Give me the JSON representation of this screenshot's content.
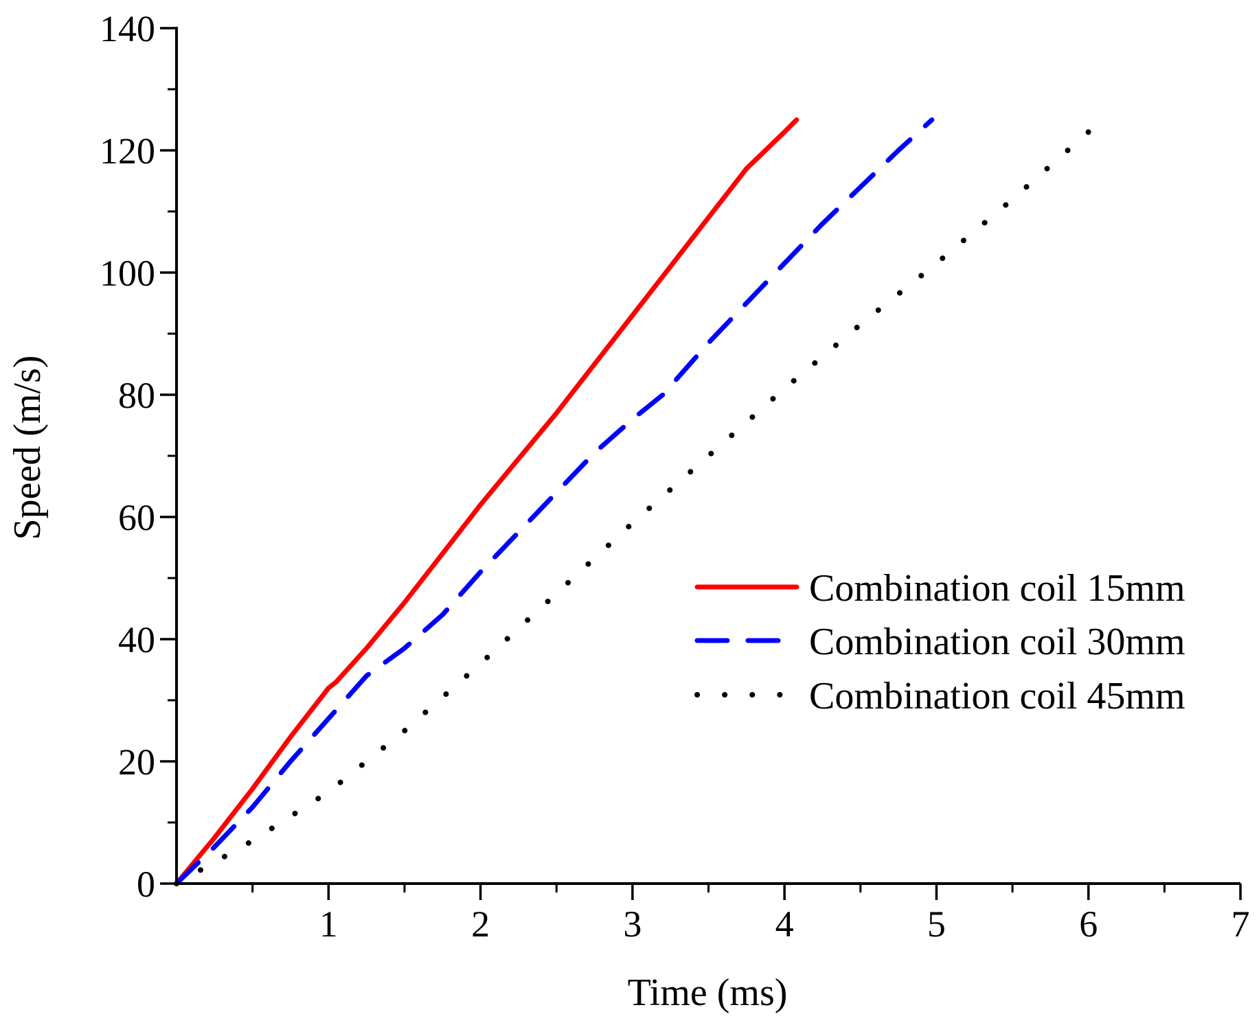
{
  "chart_data": {
    "type": "line",
    "title": "",
    "xlabel": "Time (ms)",
    "ylabel": "Speed (m/s)",
    "xlim": [
      0,
      7
    ],
    "ylim": [
      0,
      140
    ],
    "xticks": [
      1,
      2,
      3,
      4,
      5,
      6,
      7
    ],
    "xtick_labels": [
      "1",
      "2",
      "3",
      "4",
      "5",
      "6",
      "7"
    ],
    "yticks": [
      0,
      20,
      40,
      60,
      80,
      100,
      120,
      140
    ],
    "ytick_labels": [
      "0",
      "20",
      "40",
      "60",
      "80",
      "100",
      "120",
      "140"
    ],
    "grid": false,
    "legend_position": "center-right",
    "series": [
      {
        "name": "Combination coil 15mm",
        "color": "#ff0000",
        "style": "solid",
        "x": [
          0,
          0.25,
          0.5,
          0.75,
          1.0,
          1.05,
          1.25,
          1.5,
          1.75,
          2.0,
          2.25,
          2.5,
          2.75,
          3.0,
          3.25,
          3.5,
          3.75,
          4.0,
          4.08
        ],
        "y": [
          0,
          7.5,
          15.5,
          24,
          32,
          33,
          38.5,
          46,
          54,
          62,
          69.5,
          77,
          85,
          93,
          101,
          109,
          117,
          123,
          125
        ]
      },
      {
        "name": "Combination coil 30mm",
        "color": "#0000ff",
        "style": "dashed",
        "x": [
          0,
          0.25,
          0.5,
          0.75,
          1.0,
          1.25,
          1.5,
          1.75,
          2.0,
          2.25,
          2.5,
          2.75,
          3.0,
          3.2,
          3.5,
          3.75,
          4.0,
          4.25,
          4.5,
          4.75,
          4.97
        ],
        "y": [
          0,
          6,
          12.5,
          20,
          27,
          34,
          38.5,
          44,
          51,
          57.5,
          64,
          70.5,
          76,
          80,
          88.5,
          95,
          101.5,
          108,
          114,
          120,
          125
        ]
      },
      {
        "name": "Combination coil 45mm",
        "color": "#000000",
        "style": "dotted",
        "x": [
          0,
          0.5,
          1.0,
          1.5,
          2.0,
          2.5,
          3.0,
          3.5,
          4.0,
          4.5,
          5.0,
          5.5,
          6.0
        ],
        "y": [
          0,
          7,
          15,
          25,
          36,
          47.5,
          59,
          70,
          81,
          91.5,
          101.5,
          112,
          123
        ]
      }
    ]
  }
}
